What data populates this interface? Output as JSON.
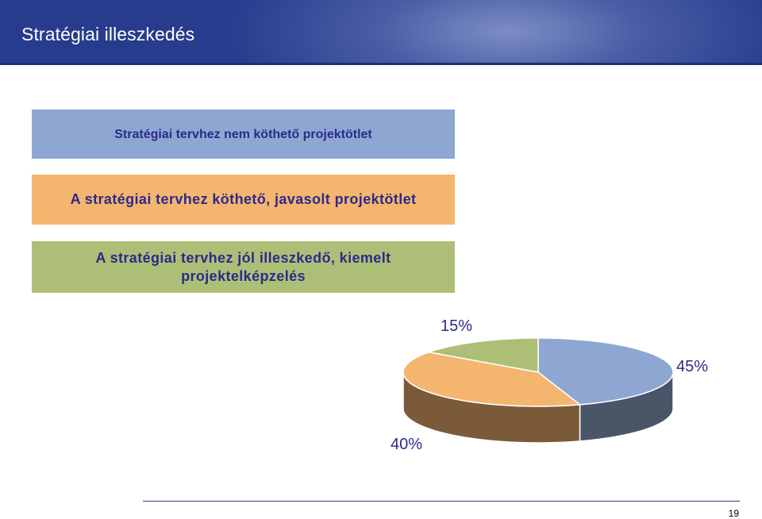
{
  "slide": {
    "title": "Stratégiai illeszkedés",
    "page_number": "19"
  },
  "boxes": [
    {
      "label": "Stratégiai tervhez nem köthető projektötlet",
      "color": "#8ea7d2"
    },
    {
      "label": "A stratégiai tervhez köthető, javasolt projektötlet",
      "color": "#f4b56f"
    },
    {
      "label": "A stratégiai tervhez jól illeszkedő, kiemelt projektelképzelés",
      "color": "#adbf77"
    }
  ],
  "chart_data": {
    "type": "pie",
    "style": "3d",
    "values": [
      45,
      40,
      15
    ],
    "labels": [
      "45%",
      "40%",
      "15%"
    ],
    "colors": [
      "#8ea7d2",
      "#f4b56f",
      "#adbf77"
    ],
    "side_colors": [
      "#4a5568",
      "#7a5a38",
      "#6b7545"
    ]
  }
}
